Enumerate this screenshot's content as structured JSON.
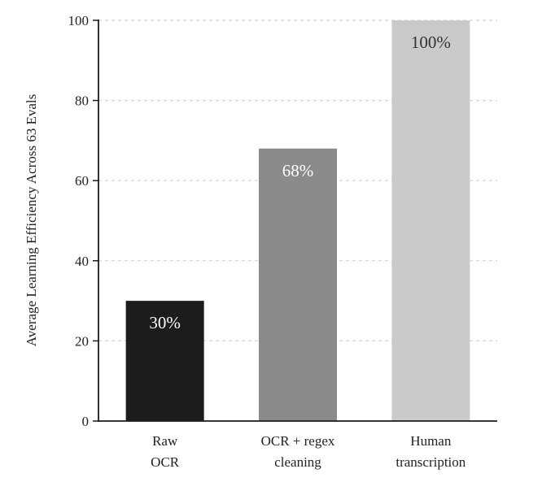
{
  "chart_data": {
    "type": "bar",
    "title": "",
    "xlabel": "",
    "ylabel": "Average Learning Efficiency Across 63 Evals",
    "ylim": [
      0,
      100
    ],
    "yticks": [
      0,
      20,
      40,
      60,
      80,
      100
    ],
    "grid": true,
    "categories": [
      [
        "Raw",
        "OCR"
      ],
      [
        "OCR + regex",
        "cleaning"
      ],
      [
        "Human",
        "transcription"
      ]
    ],
    "values": [
      30,
      68,
      100
    ],
    "data_labels": [
      "30%",
      "68%",
      "100%"
    ],
    "colors": [
      "#1c1c1c",
      "#8a8a8a",
      "#cacaca"
    ],
    "label_colors": [
      "#ffffff",
      "#ffffff",
      "#333333"
    ]
  }
}
